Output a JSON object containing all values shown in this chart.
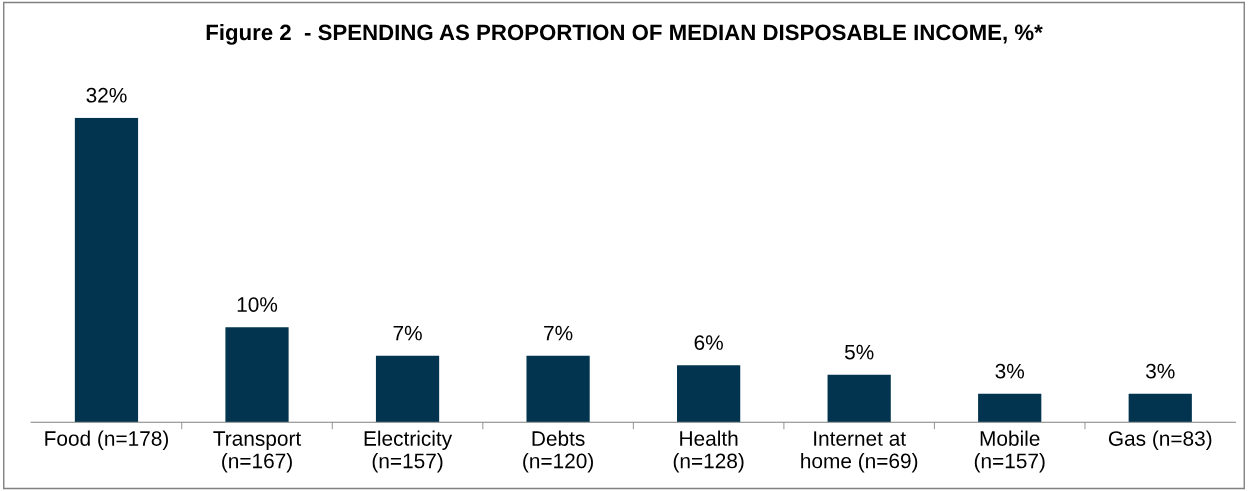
{
  "chart_data": {
    "type": "bar",
    "title": "Figure 2  - SPENDING AS PROPORTION OF MEDIAN DISPOSABLE INCOME, %*",
    "categories": [
      "Food (n=178)",
      "Transport\n(n=167)",
      "Electricity\n(n=157)",
      "Debts\n(n=120)",
      "Health\n(n=128)",
      "Internet at\nhome (n=69)",
      "Mobile\n(n=157)",
      "Gas (n=83)"
    ],
    "values": [
      32,
      10,
      7,
      7,
      6,
      5,
      3,
      3
    ],
    "value_labels": [
      "32%",
      "10%",
      "7%",
      "7%",
      "6%",
      "5%",
      "3%",
      "3%"
    ],
    "color": "#02344f",
    "grid": false,
    "legend": false
  }
}
